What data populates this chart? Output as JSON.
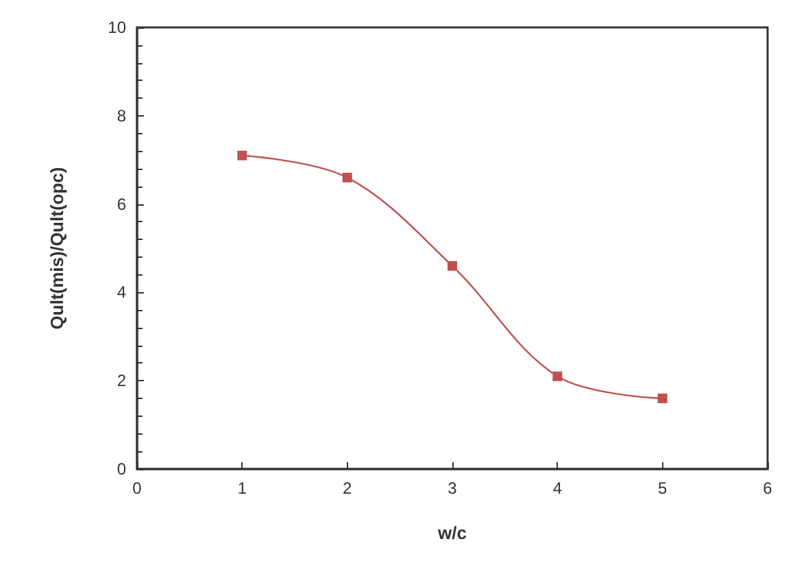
{
  "chart_data": {
    "type": "line",
    "xlabel": "w/c",
    "ylabel": "Qult(mis)/Qult(opc)",
    "x": [
      1,
      2,
      3,
      4,
      5
    ],
    "series": [
      {
        "color": "#c0504d",
        "values": [
          7.1,
          6.6,
          4.6,
          2.1,
          1.6
        ]
      }
    ],
    "xlim": [
      0,
      6
    ],
    "xticks": [
      0,
      1,
      2,
      3,
      4,
      5,
      6
    ],
    "ylim": [
      0,
      10
    ],
    "yticks": [
      0,
      2,
      4,
      6,
      8,
      10
    ],
    "grid": false,
    "marker": "square",
    "line_style": "solid"
  }
}
